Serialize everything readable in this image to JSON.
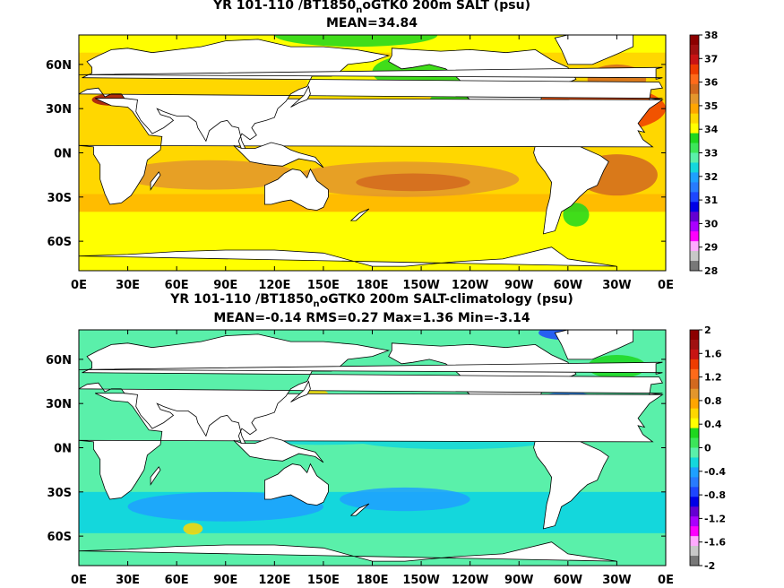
{
  "charts": [
    {
      "type": "heatmap",
      "title_pre": "YR 101-110 /BT1850",
      "title_sub": "n",
      "title_post": "oGTK0 200m SALT (psu)",
      "subtitle": "MEAN=34.84",
      "x_tick_labels": [
        "0E",
        "30E",
        "60E",
        "90E",
        "120E",
        "150E",
        "180E",
        "150W",
        "120W",
        "90W",
        "60W",
        "30W",
        "0E"
      ],
      "y_tick_labels": [
        "60N",
        "30N",
        "0N",
        "30S",
        "60S"
      ],
      "colorbar": {
        "labels": [
          "38",
          "37",
          "36",
          "35",
          "34",
          "33",
          "32",
          "31",
          "30",
          "29",
          "28"
        ],
        "colors": [
          "#8c0000",
          "#a01010",
          "#c81414",
          "#ee3c00",
          "#ff6a1a",
          "#d2691e",
          "#e3962c",
          "#ffa500",
          "#ffd700",
          "#ffff00",
          "#1ed71e",
          "#3ce65a",
          "#5af0aa",
          "#14d7dc",
          "#1ea0ff",
          "#287bff",
          "#1e46ff",
          "#0000e6",
          "#6400d2",
          "#aa00ff",
          "#ff00ff",
          "#ffaaff",
          "#c8c8c8",
          "#787878"
        ]
      },
      "regions": [
        {
          "name": "arctic",
          "color": "#ffff00"
        },
        {
          "name": "north-pacific",
          "color": "#ffff00"
        },
        {
          "name": "north-atlantic",
          "color": "#ee3c00"
        },
        {
          "name": "indian",
          "color": "#ffd700"
        },
        {
          "name": "south-pacific",
          "color": "#e3962c"
        },
        {
          "name": "southern",
          "color": "#ffff00"
        }
      ]
    },
    {
      "type": "heatmap",
      "title_pre": "YR 101-110 /BT1850",
      "title_sub": "n",
      "title_post": "oGTK0 200m SALT-climatology (psu)",
      "subtitle": "MEAN=-0.14   RMS=0.27   Max=1.36   Min=-3.14",
      "x_tick_labels": [
        "0E",
        "30E",
        "60E",
        "90E",
        "120E",
        "150E",
        "180E",
        "150W",
        "120W",
        "90W",
        "60W",
        "30W",
        "0E"
      ],
      "y_tick_labels": [
        "60N",
        "30N",
        "0N",
        "30S",
        "60S"
      ],
      "colorbar": {
        "labels": [
          "2",
          "1.6",
          "1.2",
          "0.8",
          "0.4",
          "0",
          "-0.4",
          "-0.8",
          "-1.2",
          "-1.6",
          "-2"
        ],
        "colors": [
          "#8c0000",
          "#a01010",
          "#c81414",
          "#ee3c00",
          "#ff6a1a",
          "#d2691e",
          "#e3962c",
          "#ffa500",
          "#ffd700",
          "#ffff00",
          "#1ed71e",
          "#3ce65a",
          "#5af0aa",
          "#14d7dc",
          "#1ea0ff",
          "#287bff",
          "#1e46ff",
          "#0000e6",
          "#6400d2",
          "#aa00ff",
          "#ff00ff",
          "#ffaaff",
          "#c8c8c8",
          "#787878"
        ]
      },
      "regions": [
        {
          "name": "ocean-background",
          "color": "#5af0aa"
        },
        {
          "name": "southern-ocean-fresh",
          "color": "#1ea0ff"
        },
        {
          "name": "north-pacific-salty",
          "color": "#ffd700"
        },
        {
          "name": "tropical-band",
          "color": "#14d7dc"
        }
      ]
    }
  ],
  "chart_data": [
    {
      "type": "heatmap",
      "title": "YR 101-110 /BT1850noGTK0 200m SALT (psu)",
      "subtitle": "MEAN=34.84",
      "xlabel": "",
      "ylabel": "",
      "x_ticks": [
        "0E",
        "30E",
        "60E",
        "90E",
        "120E",
        "150E",
        "180E",
        "150W",
        "120W",
        "90W",
        "60W",
        "30W",
        "0E"
      ],
      "y_ticks": [
        "60N",
        "30N",
        "0N",
        "30S",
        "60S"
      ],
      "colorbar_range": [
        28,
        38
      ],
      "colorbar_ticks": [
        38,
        37,
        36,
        35,
        34,
        33,
        32,
        31,
        30,
        29,
        28
      ],
      "mean": 34.84
    },
    {
      "type": "heatmap",
      "title": "YR 101-110 /BT1850noGTK0 200m SALT-climatology (psu)",
      "subtitle": "MEAN=-0.14   RMS=0.27   Max=1.36   Min=-3.14",
      "xlabel": "",
      "ylabel": "",
      "x_ticks": [
        "0E",
        "30E",
        "60E",
        "90E",
        "120E",
        "150E",
        "180E",
        "150W",
        "120W",
        "90W",
        "60W",
        "30W",
        "0E"
      ],
      "y_ticks": [
        "60N",
        "30N",
        "0N",
        "30S",
        "60S"
      ],
      "colorbar_range": [
        -2,
        2
      ],
      "colorbar_ticks": [
        2,
        1.6,
        1.2,
        0.8,
        0.4,
        0,
        -0.4,
        -0.8,
        -1.2,
        -1.6,
        -2
      ],
      "mean": -0.14,
      "rms": 0.27,
      "max": 1.36,
      "min": -3.14
    }
  ]
}
